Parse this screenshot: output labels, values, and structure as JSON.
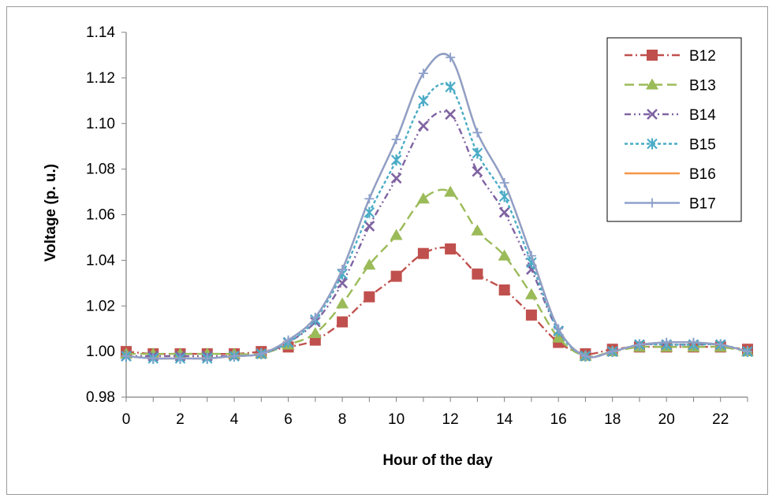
{
  "chart_data": {
    "type": "line",
    "title": "",
    "xlabel": "Hour of the day",
    "ylabel": "Voltage (p. u.)",
    "xlim": [
      0,
      23
    ],
    "ylim": [
      0.98,
      1.14
    ],
    "x_ticks": [
      0,
      2,
      4,
      6,
      8,
      10,
      12,
      14,
      16,
      18,
      20,
      22
    ],
    "y_ticks": [
      0.98,
      1.0,
      1.02,
      1.04,
      1.06,
      1.08,
      1.1,
      1.12,
      1.14
    ],
    "y_tick_labels": [
      "0.98",
      "1.00",
      "1.02",
      "1.04",
      "1.06",
      "1.08",
      "1.10",
      "1.12",
      "1.14"
    ],
    "grid": false,
    "legend_position": "top-right",
    "x": [
      0,
      1,
      2,
      3,
      4,
      5,
      6,
      7,
      8,
      9,
      10,
      11,
      12,
      13,
      14,
      15,
      16,
      17,
      18,
      19,
      20,
      21,
      22,
      23
    ],
    "series": [
      {
        "name": "B12",
        "color": "#c0504d",
        "marker": "square",
        "dash": "10 4 2 4",
        "values": [
          1.0,
          0.999,
          0.999,
          0.999,
          0.999,
          1.0,
          1.002,
          1.005,
          1.013,
          1.024,
          1.033,
          1.043,
          1.045,
          1.034,
          1.027,
          1.016,
          1.004,
          0.999,
          1.001,
          1.002,
          1.002,
          1.002,
          1.002,
          1.001
        ]
      },
      {
        "name": "B13",
        "color": "#9bbb59",
        "marker": "triangle",
        "dash": "12 6",
        "values": [
          0.999,
          0.999,
          0.999,
          0.999,
          0.999,
          0.999,
          1.003,
          1.008,
          1.021,
          1.038,
          1.051,
          1.067,
          1.07,
          1.053,
          1.042,
          1.025,
          1.006,
          0.998,
          1.0,
          1.002,
          1.002,
          1.002,
          1.002,
          1.0
        ]
      },
      {
        "name": "B14",
        "color": "#8064a2",
        "marker": "x",
        "dash": "8 4 2 4 2 4",
        "values": [
          0.998,
          0.998,
          0.998,
          0.998,
          0.998,
          0.999,
          1.004,
          1.013,
          1.03,
          1.055,
          1.076,
          1.099,
          1.104,
          1.079,
          1.061,
          1.036,
          1.009,
          0.998,
          1.0,
          1.003,
          1.003,
          1.003,
          1.003,
          1.0
        ]
      },
      {
        "name": "B15",
        "color": "#4bacc6",
        "marker": "asterisk",
        "dash": "4 3",
        "values": [
          0.998,
          0.997,
          0.997,
          0.997,
          0.998,
          0.999,
          1.004,
          1.014,
          1.034,
          1.061,
          1.084,
          1.11,
          1.116,
          1.087,
          1.068,
          1.039,
          1.009,
          0.998,
          1.0,
          1.003,
          1.003,
          1.003,
          1.003,
          1.0
        ]
      },
      {
        "name": "B16",
        "color": "#f79646",
        "marker": "none",
        "dash": "",
        "values": [
          0.998,
          0.997,
          0.997,
          0.997,
          0.998,
          0.999,
          1.005,
          1.015,
          1.036,
          1.067,
          1.093,
          1.122,
          1.129,
          1.096,
          1.074,
          1.042,
          1.01,
          0.998,
          1.0,
          1.003,
          1.004,
          1.004,
          1.003,
          1.0
        ]
      },
      {
        "name": "B17",
        "color": "#8da0cb",
        "marker": "plus",
        "dash": "",
        "values": [
          0.998,
          0.997,
          0.997,
          0.997,
          0.998,
          0.999,
          1.005,
          1.015,
          1.036,
          1.067,
          1.093,
          1.122,
          1.129,
          1.096,
          1.074,
          1.042,
          1.01,
          0.998,
          1.0,
          1.003,
          1.004,
          1.004,
          1.003,
          1.0
        ]
      }
    ]
  }
}
